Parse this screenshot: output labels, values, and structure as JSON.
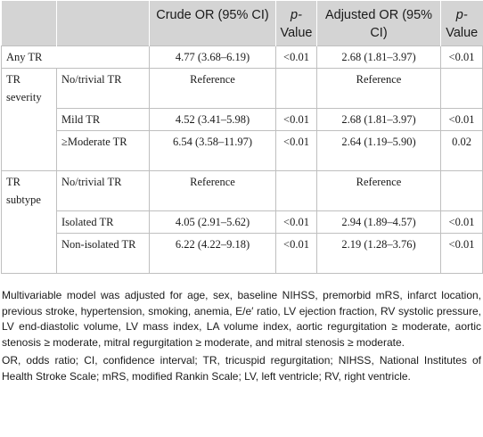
{
  "header": {
    "col_blank_1": "",
    "col_blank_2": "",
    "crude_or": "Crude OR (95% CI)",
    "p_value_1": "p-",
    "p_value_1b": "Value",
    "adjusted_or": "Adjusted OR (95% CI)",
    "p_value_2": "p-",
    "p_value_2b": "Value"
  },
  "rows": {
    "any_tr": {
      "label": "Any TR",
      "crude": "4.77 (3.68–6.19)",
      "p1": "<0.01",
      "adjusted": "2.68 (1.81–3.97)",
      "p2": "<0.01"
    },
    "severity": {
      "group": "TR severity",
      "none": {
        "label": "No/trivial TR",
        "crude": "Reference",
        "p1": "",
        "adjusted": "Reference",
        "p2": ""
      },
      "mild": {
        "label": "Mild TR",
        "crude": "4.52 (3.41–5.98)",
        "p1": "<0.01",
        "adjusted": "2.68 (1.81–3.97)",
        "p2": "<0.01"
      },
      "moderate": {
        "label": "≥Moderate TR",
        "crude": "6.54 (3.58–11.97)",
        "p1": "<0.01",
        "adjusted": "2.64 (1.19–5.90)",
        "p2": "0.02"
      }
    },
    "subtype": {
      "group": "TR subtype",
      "none": {
        "label": "No/trivial TR",
        "crude": "Reference",
        "p1": "",
        "adjusted": "Reference",
        "p2": ""
      },
      "isolated": {
        "label": "Isolated TR",
        "crude": "4.05 (2.91–5.62)",
        "p1": "<0.01",
        "adjusted": "2.94 (1.89–4.57)",
        "p2": "<0.01"
      },
      "non_isolated": {
        "label": "Non-isolated TR",
        "crude": "6.22 (4.22–9.18)",
        "p1": "<0.01",
        "adjusted": "2.19 (1.28–3.76)",
        "p2": "<0.01"
      }
    }
  },
  "footnotes": {
    "model": "Multivariable model was adjusted for age, sex, baseline NIHSS, premorbid mRS, infarct location, previous stroke, hypertension, smoking, anemia, E/e′ ratio, LV ejection fraction, RV systolic pressure, LV end-diastolic volume, LV mass index, LA volume index, aortic regurgitation ≥ moderate, aortic stenosis ≥ moderate, mitral regurgitation ≥ moderate, and mitral stenosis ≥ moderate.",
    "abbreviations": "OR, odds ratio; CI, confidence interval; TR, tricuspid regurgitation; NIHSS, National Institutes of Health Stroke Scale; mRS, modified Rankin Scale; LV, left ventricle; RV, right ventricle."
  },
  "colors": {
    "header_bg": "#d4d4d4",
    "border": "#bfbfbf",
    "text": "#1a1a1a"
  }
}
